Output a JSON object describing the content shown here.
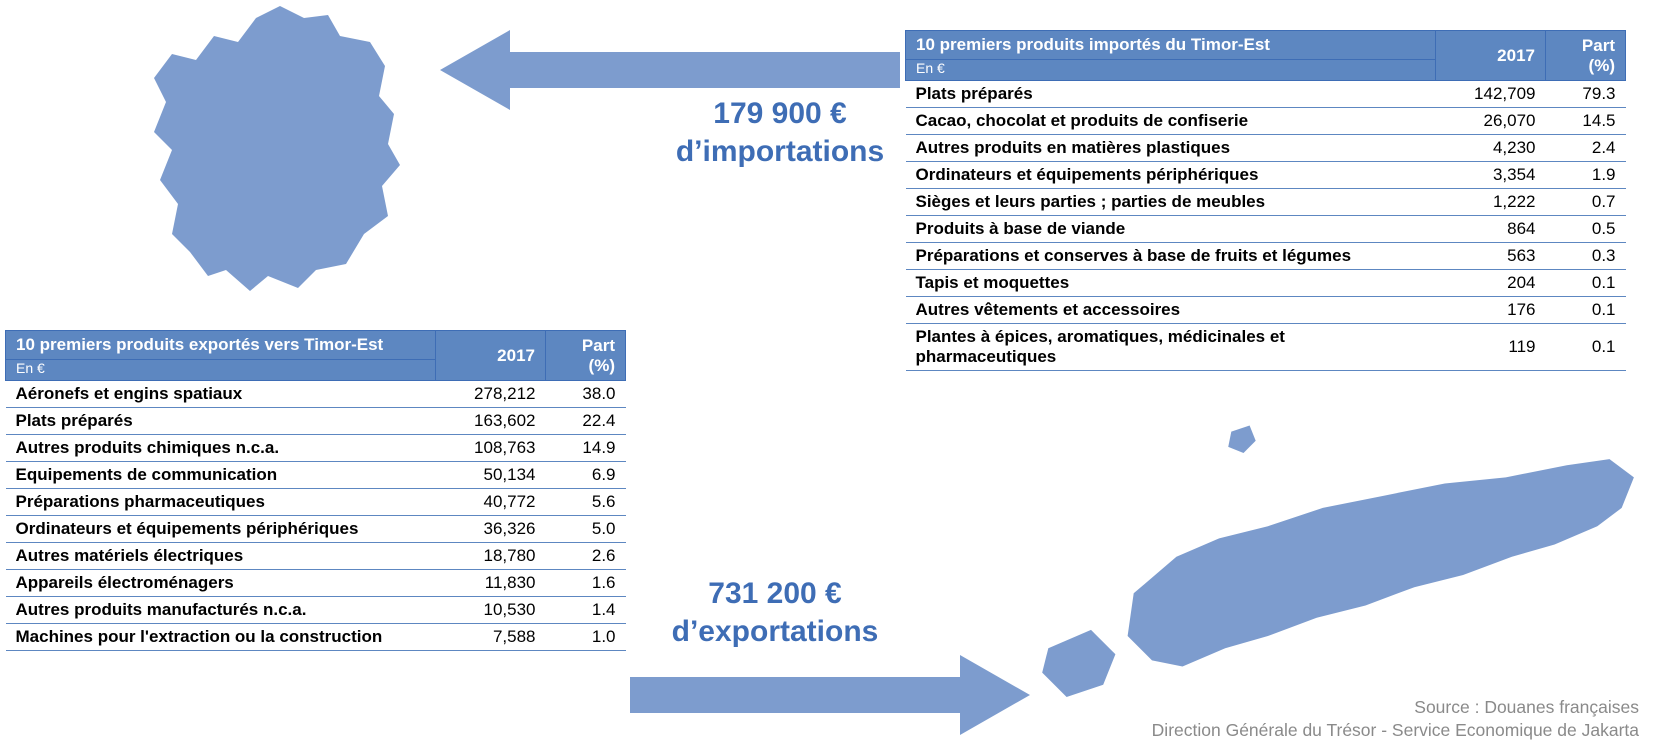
{
  "colors": {
    "accent": "#5d87c1",
    "accent_dark": "#3e6db5",
    "map_fill": "#7d9cce",
    "text_grey": "#8a8a8a",
    "background": "#ffffff"
  },
  "france_map": {
    "alt": "Carte de la France (silhouette)",
    "fill": "#7d9cce"
  },
  "timor_map": {
    "alt": "Carte du Timor-Est (silhouette)",
    "fill": "#7d9cce"
  },
  "imports_label": {
    "amount": "179 900 €",
    "caption": "d’importations"
  },
  "exports_label": {
    "amount": "731 200 €",
    "caption": "d’exportations"
  },
  "exports_table": {
    "title": "10 premiers produits exportés vers Timor-Est",
    "unit": "En €",
    "col_year": "2017",
    "col_part": "Part (%)",
    "rows": [
      {
        "label": "Aéronefs et engins spatiaux",
        "value": "278,212",
        "part": "38.0"
      },
      {
        "label": "Plats préparés",
        "value": "163,602",
        "part": "22.4"
      },
      {
        "label": "Autres produits chimiques n.c.a.",
        "value": "108,763",
        "part": "14.9"
      },
      {
        "label": "Equipements de communication",
        "value": "50,134",
        "part": "6.9"
      },
      {
        "label": "Préparations pharmaceutiques",
        "value": "40,772",
        "part": "5.6"
      },
      {
        "label": "Ordinateurs et équipements périphériques",
        "value": "36,326",
        "part": "5.0"
      },
      {
        "label": "Autres matériels électriques",
        "value": "18,780",
        "part": "2.6"
      },
      {
        "label": "Appareils électroménagers",
        "value": "11,830",
        "part": "1.6"
      },
      {
        "label": "Autres produits manufacturés n.c.a.",
        "value": "10,530",
        "part": "1.4"
      },
      {
        "label": "Machines pour l'extraction ou la construction",
        "value": "7,588",
        "part": "1.0"
      }
    ],
    "layout": {
      "col_label_w": 430,
      "col_val_w": 110,
      "col_part_w": 80
    }
  },
  "imports_table": {
    "title": "10 premiers produits importés du Timor-Est",
    "unit": "En €",
    "col_year": "2017",
    "col_part": "Part (%)",
    "rows": [
      {
        "label": "Plats préparés",
        "value": "142,709",
        "part": "79.3"
      },
      {
        "label": "Cacao, chocolat et produits de confiserie",
        "value": "26,070",
        "part": "14.5"
      },
      {
        "label": "Autres produits en matières plastiques",
        "value": "4,230",
        "part": "2.4"
      },
      {
        "label": "Ordinateurs et équipements périphériques",
        "value": "3,354",
        "part": "1.9"
      },
      {
        "label": "Sièges et leurs parties ; parties de meubles",
        "value": "1,222",
        "part": "0.7"
      },
      {
        "label": "Produits à base de viande",
        "value": "864",
        "part": "0.5"
      },
      {
        "label": "Préparations et conserves à base de fruits et légumes",
        "value": "563",
        "part": "0.3"
      },
      {
        "label": "Tapis et moquettes",
        "value": "204",
        "part": "0.1"
      },
      {
        "label": "Autres vêtements et accessoires",
        "value": "176",
        "part": "0.1"
      },
      {
        "label": "Plantes à épices, aromatiques, médicinales et pharmaceutiques",
        "value": "119",
        "part": "0.1"
      }
    ],
    "layout": {
      "col_label_w": 530,
      "col_val_w": 110,
      "col_part_w": 80
    }
  },
  "source": {
    "line1": "Source : Douanes françaises",
    "line2": "Direction Générale du Trésor - Service Economique de Jakarta"
  }
}
